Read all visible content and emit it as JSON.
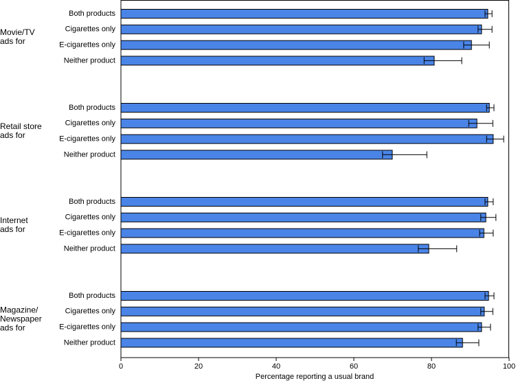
{
  "chart_data": {
    "type": "hbar-grouped",
    "x_label": "Percentage reporting a usual brand",
    "xlim": [
      0,
      100
    ],
    "xticks": [
      0,
      20,
      40,
      60,
      80,
      100
    ],
    "color": "#4a84e6",
    "groups": [
      {
        "label_lines": [
          "Movie/TV",
          "ads for"
        ],
        "categories": [
          "Both products",
          "Cigarettes only",
          "E-cigarettes only",
          "Neither product"
        ],
        "values": [
          94.5,
          92.9,
          90.3,
          80.7
        ],
        "lower": [
          93.8,
          92.0,
          88.3,
          78.1
        ],
        "upper": [
          95.6,
          95.6,
          94.9,
          87.8
        ]
      },
      {
        "label_lines": [
          "Retail store",
          "ads for"
        ],
        "categories": [
          "Both products",
          "Cigarettes only",
          "E-cigarettes only",
          "Neither product"
        ],
        "values": [
          94.9,
          91.7,
          95.9,
          69.9
        ],
        "lower": [
          94.2,
          89.6,
          94.2,
          67.4
        ],
        "upper": [
          96.1,
          95.8,
          98.6,
          78.8
        ]
      },
      {
        "label_lines": [
          "Internet",
          "ads for"
        ],
        "categories": [
          "Both products",
          "Cigarettes only",
          "E-cigarettes only",
          "Neither product"
        ],
        "values": [
          94.5,
          94.0,
          93.5,
          79.3
        ],
        "lower": [
          93.8,
          92.7,
          92.4,
          76.6
        ],
        "upper": [
          95.9,
          96.6,
          95.9,
          86.5
        ]
      },
      {
        "label_lines": [
          "Magazine/",
          "Newspaper",
          "ads for"
        ],
        "categories": [
          "Both products",
          "Cigarettes only",
          "E-cigarettes only",
          "Neither product"
        ],
        "values": [
          94.7,
          93.6,
          92.9,
          88.0
        ],
        "lower": [
          93.8,
          92.7,
          92.0,
          86.4
        ],
        "upper": [
          96.1,
          95.8,
          95.2,
          92.2
        ]
      }
    ]
  }
}
